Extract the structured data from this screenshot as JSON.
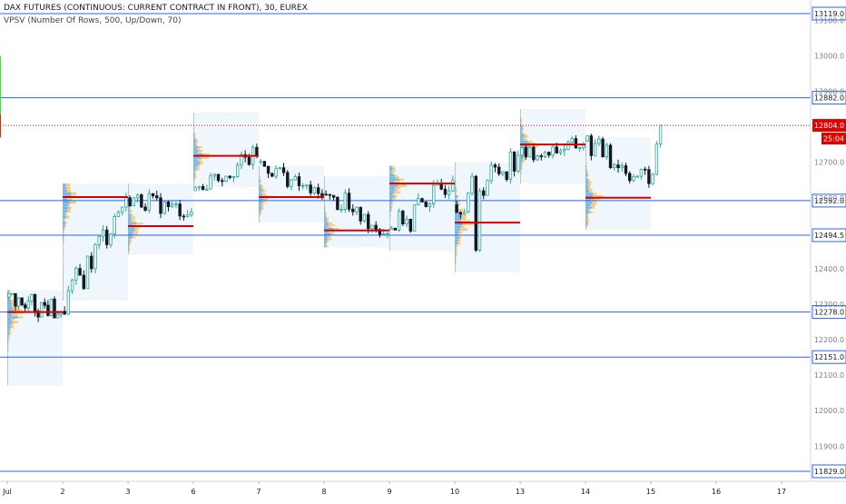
{
  "legend": {
    "title": "DAX FUTURES (CONTINUOUS: CURRENT CONTRACT IN FRONT), 30, EUREX",
    "indicator": "VPSV (Number Of Rows, 500, Up/Down, 70)"
  },
  "colors": {
    "up": "#26a69a",
    "down": "#131722",
    "hline": "#2962ff",
    "poc": "#d50000",
    "arrow_green": "#00e600",
    "arrow_red": "#e00000",
    "vp_up": "#5ba8e6",
    "vp_down": "#f7c46c",
    "profile_bg": "#e8f4fc"
  },
  "chart_data": {
    "type": "candlestick",
    "ylim": [
      11800,
      13130
    ],
    "x_tick_labels": [
      "Jul",
      "2",
      "3",
      "6",
      "7",
      "8",
      "9",
      "10",
      "13",
      "14",
      "15",
      "16",
      "17"
    ],
    "y_tick_labels": [
      "13100.0",
      "13000.0",
      "12900.0",
      "12700.0",
      "12600.0",
      "12400.0",
      "12300.0",
      "12200.0",
      "12100.0",
      "12000.0",
      "11900.0"
    ],
    "horizontal_levels": [
      13119.0,
      12882.0,
      12592.0,
      12494.5,
      12278.0,
      12151.0,
      11829.0
    ],
    "last_price": 12804.0,
    "last_price_label": "12804.0",
    "countdown": "25:04",
    "sessions": [
      {
        "day": "Jul",
        "open": 12320,
        "high": 12330,
        "low": 12060,
        "close": 12280,
        "poc": 12278,
        "range": [
          12070,
          12340
        ]
      },
      {
        "day": "2",
        "open": 12280,
        "high": 12640,
        "low": 12270,
        "close": 12600,
        "poc": 12602,
        "range": [
          12310,
          12640
        ]
      },
      {
        "day": "3",
        "open": 12600,
        "high": 12640,
        "low": 12450,
        "close": 12560,
        "poc": 12520,
        "range": [
          12440,
          12640
        ]
      },
      {
        "day": "6",
        "open": 12620,
        "high": 12850,
        "low": 12620,
        "close": 12720,
        "poc": 12718,
        "range": [
          12630,
          12840
        ]
      },
      {
        "day": "7",
        "open": 12700,
        "high": 12710,
        "low": 12540,
        "close": 12600,
        "poc": 12602,
        "range": [
          12530,
          12690
        ]
      },
      {
        "day": "8",
        "open": 12610,
        "high": 12640,
        "low": 12460,
        "close": 12500,
        "poc": 12508,
        "range": [
          12460,
          12660
        ]
      },
      {
        "day": "9",
        "open": 12510,
        "high": 12690,
        "low": 12460,
        "close": 12650,
        "poc": 12640,
        "range": [
          12450,
          12690
        ]
      },
      {
        "day": "10",
        "open": 12580,
        "high": 12740,
        "low": 12380,
        "close": 12720,
        "poc": 12530,
        "range": [
          12390,
          12700
        ]
      },
      {
        "day": "13",
        "open": 12720,
        "high": 12860,
        "low": 12680,
        "close": 12750,
        "poc": 12750,
        "range": [
          12640,
          12850
        ]
      },
      {
        "day": "14",
        "open": 12760,
        "high": 12790,
        "low": 12510,
        "close": 12640,
        "poc": 12600,
        "range": [
          12510,
          12770
        ]
      },
      {
        "day": "15",
        "open": 12640,
        "high": 12850,
        "low": 12620,
        "close": 12804,
        "poc": null,
        "range": null
      }
    ]
  },
  "annotations": {
    "arrows": [
      {
        "color": "green",
        "from": [
          15.35,
          12770
        ],
        "to": [
          15.8,
          12880
        ]
      },
      {
        "color": "green",
        "from": [
          15.8,
          12880
        ],
        "to": [
          16.1,
          13000
        ]
      },
      {
        "color": "red",
        "from": [
          15.05,
          12835
        ],
        "to": [
          15.3,
          12770
        ]
      }
    ]
  }
}
